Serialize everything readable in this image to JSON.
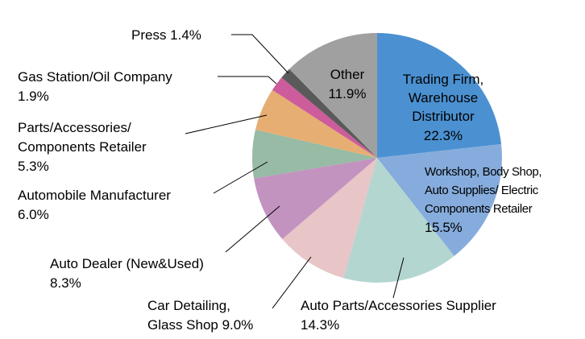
{
  "chart_data": {
    "type": "pie",
    "start": "12 o'clock",
    "direction": "clockwise",
    "slices": [
      {
        "label": "Trading Firm, Warehouse Distributor",
        "lines": [
          "Trading Firm,",
          "Warehouse",
          "Distributor",
          "22.3%"
        ],
        "value": 22.3,
        "color": "#4b91d1"
      },
      {
        "label": "Workshop, Body Shop, Auto Supplies/ Electric Components Retailer",
        "lines": [
          "Workshop, Body Shop,",
          "Auto Supplies/ Electric",
          "Components Retailer",
          "15.5%"
        ],
        "value": 15.5,
        "color": "#85acdc"
      },
      {
        "label": "Auto Parts/Accessories Supplier",
        "lines": [
          "Auto Parts/Accessories Supplier",
          "14.3%"
        ],
        "value": 14.3,
        "color": "#b3d6d0"
      },
      {
        "label": "Car Detailing, Glass Shop",
        "lines": [
          "Car Detailing,",
          "Glass Shop 9.0%"
        ],
        "value": 9.0,
        "color": "#e8c5c7"
      },
      {
        "label": "Auto Dealer (New&Used)",
        "lines": [
          "Auto Dealer (New&Used)",
          "8.3%"
        ],
        "value": 8.3,
        "color": "#c393c0"
      },
      {
        "label": "Automobile Manufacturer",
        "lines": [
          "Automobile Manufacturer",
          "6.0%"
        ],
        "value": 6.0,
        "color": "#97bba4"
      },
      {
        "label": "Parts/Accessories/ Components Retailer",
        "lines": [
          "Parts/Accessories/",
          "Components Retailer",
          "5.3%"
        ],
        "value": 5.3,
        "color": "#e6ae72"
      },
      {
        "label": "Gas Station/Oil Company",
        "lines": [
          "Gas Station/Oil Company",
          "1.9%"
        ],
        "value": 1.9,
        "color": "#cc5c9c"
      },
      {
        "label": "Press",
        "lines": [
          "Press 1.4%"
        ],
        "value": 1.4,
        "color": "#5a5a5a"
      },
      {
        "label": "Other",
        "lines": [
          "Other",
          "11.9%"
        ],
        "value": 11.9,
        "color": "#a0a0a0"
      }
    ]
  }
}
